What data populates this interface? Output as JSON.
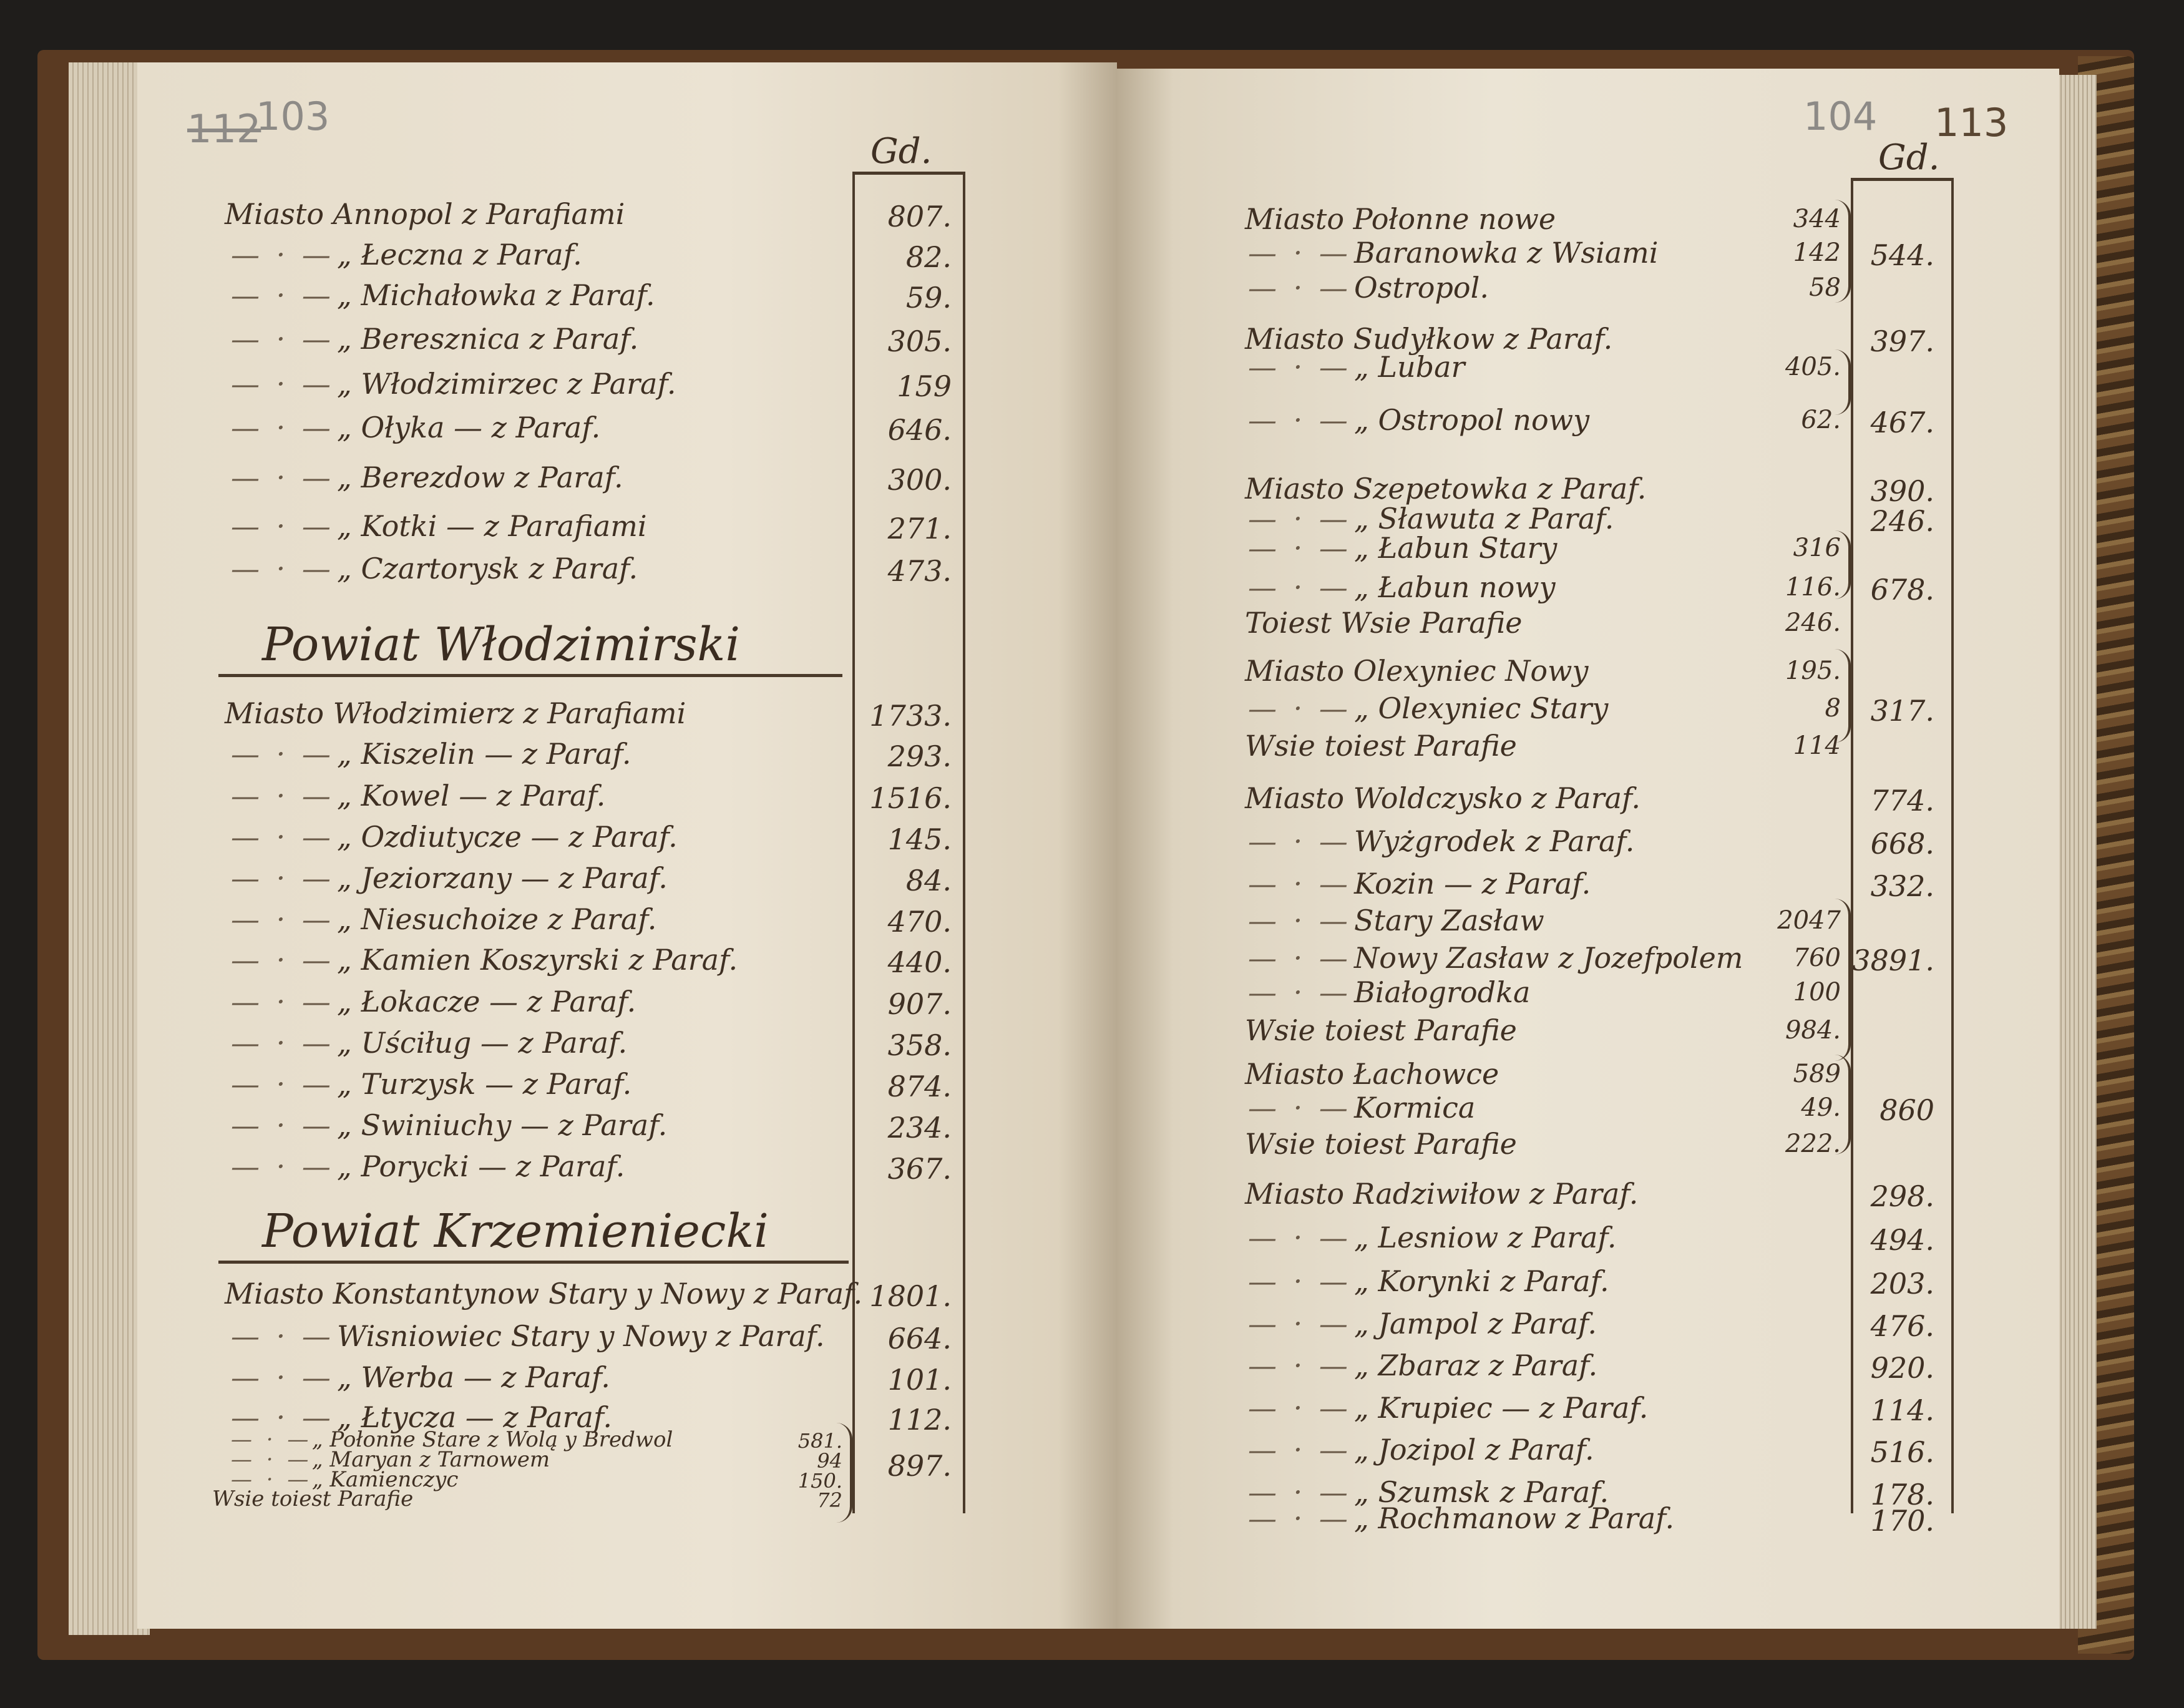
{
  "left_page": {
    "folio_numbers": [
      "112",
      "103"
    ],
    "column_header": "Gd.",
    "groups": [
      {
        "heading": "",
        "entries": [
          {
            "label": "Miasto Annopol z Parafiami",
            "value": "807."
          },
          {
            "label": "„ Łeczna z Paraf.",
            "value": "82."
          },
          {
            "label": "„ Michałowka z Paraf.",
            "value": "59."
          },
          {
            "label": "„ Beresznica z Paraf.",
            "value": "305."
          },
          {
            "label": "„ Włodzimirzec z Paraf.",
            "value": "159"
          },
          {
            "label": "„ Ołyka — z Paraf.",
            "value": "646."
          },
          {
            "label": "„ Berezdow z Paraf.",
            "value": "300."
          },
          {
            "label": "„ Kotki — z Parafiami",
            "value": "271."
          },
          {
            "label": "„ Czartorysk z Paraf.",
            "value": "473."
          }
        ]
      },
      {
        "heading": "Powiat Włodzimirski",
        "entries": [
          {
            "label": "Miasto Włodzimierz z Parafiami",
            "value": "1733."
          },
          {
            "label": "„ Kiszelin — z Paraf.",
            "value": "293."
          },
          {
            "label": "„ Kowel — z Paraf.",
            "value": "1516."
          },
          {
            "label": "„ Ozdiutycze — z Paraf.",
            "value": "145."
          },
          {
            "label": "„ Jeziorzany — z Paraf.",
            "value": "84."
          },
          {
            "label": "„ Niesuchoize z Paraf.",
            "value": "470."
          },
          {
            "label": "„ Kamien Koszyrski z Paraf.",
            "value": "440."
          },
          {
            "label": "„ Łokacze — z Paraf.",
            "value": "907."
          },
          {
            "label": "„ Uściług — z Paraf.",
            "value": "358."
          },
          {
            "label": "„ Turzysk — z Paraf.",
            "value": "874."
          },
          {
            "label": "„ Swiniuchy — z Paraf.",
            "value": "234."
          },
          {
            "label": "„ Porycki — z Paraf.",
            "value": "367."
          }
        ]
      },
      {
        "heading": "Powiat Krzemieniecki",
        "entries": [
          {
            "label": "Miasto Konstantynow Stary y Nowy z Paraf.",
            "value": "1801."
          },
          {
            "label": "Wisniowiec Stary y Nowy z Paraf.",
            "value": "664."
          },
          {
            "label": "„ Werba — z Paraf.",
            "value": "101."
          },
          {
            "label": "„ Łtycza — z Paraf.",
            "value": "112."
          },
          {
            "label": "„ Połonne Stare z Wolą y Bredwol",
            "sub": "581."
          },
          {
            "label": "„ Maryan z Tarnowem",
            "sub": "94",
            "value": "897."
          },
          {
            "label": "„ Kamienczyc",
            "sub": "150."
          },
          {
            "label": "Wsie toiest Parafie",
            "sub": "72"
          }
        ]
      }
    ]
  },
  "right_page": {
    "folio_numbers": [
      "104",
      "113"
    ],
    "column_header": "Gd.",
    "entries": [
      {
        "label": "Miasto Połonne nowe",
        "sub": "344"
      },
      {
        "label": "Baranowka z Wsiami",
        "sub": "142",
        "value": "544."
      },
      {
        "label": "Ostropol.",
        "sub": "58"
      },
      {
        "label": "Miasto Sudyłkow z Paraf.",
        "value": "397."
      },
      {
        "label": "„ Lubar",
        "sub": "405."
      },
      {
        "label": "„ Ostropol nowy",
        "sub": "62.",
        "value": "467."
      },
      {
        "label": "Miasto Szepetowka z Paraf.",
        "value": "390."
      },
      {
        "label": "„ Sławuta z Paraf.",
        "value": "246."
      },
      {
        "label": "„ Łabun Stary",
        "sub": "316"
      },
      {
        "label": "„ Łabun nowy",
        "sub": "116.",
        "value": "678."
      },
      {
        "label": "Toiest Wsie Parafie",
        "sub": "246."
      },
      {
        "label": "Miasto Olexyniec Nowy",
        "sub": "195."
      },
      {
        "label": "„ Olexyniec Stary",
        "sub": "8",
        "value": "317."
      },
      {
        "label": "Wsie toiest Parafie",
        "sub": "114"
      },
      {
        "label": "Miasto Woldczysko z Paraf.",
        "value": "774."
      },
      {
        "label": "Wyżgrodek z Paraf.",
        "value": "668."
      },
      {
        "label": "Kozin — z Paraf.",
        "value": "332."
      },
      {
        "label": "Stary Zasław",
        "sub": "2047"
      },
      {
        "label": "Nowy Zasław z Jozefpolem",
        "sub": "760",
        "value": "3891."
      },
      {
        "label": "Białogrodka",
        "sub": "100"
      },
      {
        "label": "Wsie toiest Parafie",
        "sub": "984."
      },
      {
        "label": "Miasto Łachowce",
        "sub": "589"
      },
      {
        "label": "Kormica",
        "sub": "49.",
        "value": "860"
      },
      {
        "label": "Wsie toiest Parafie",
        "sub": "222."
      },
      {
        "label": "Miasto Radziwiłow z Paraf.",
        "value": "298."
      },
      {
        "label": "„ Lesniow z Paraf.",
        "value": "494."
      },
      {
        "label": "„ Korynki z Paraf.",
        "value": "203."
      },
      {
        "label": "„ Jampol z Paraf.",
        "value": "476."
      },
      {
        "label": "„ Zbaraz z Paraf.",
        "value": "920."
      },
      {
        "label": "„ Krupiec — z Paraf.",
        "value": "114."
      },
      {
        "label": "„ Jozipol z Paraf.",
        "value": "516."
      },
      {
        "label": "„ Szumsk z Paraf.",
        "value": "178."
      },
      {
        "label": "„ Rochmanow z Paraf.",
        "value": "170."
      }
    ]
  }
}
